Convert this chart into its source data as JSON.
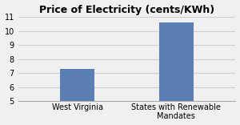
{
  "title": "Price of Electricity (cents/KWh)",
  "categories": [
    "West Virginia",
    "States with Renewable\nMandates"
  ],
  "values": [
    7.3,
    10.6
  ],
  "bar_color": "#5b7fb5",
  "ylim": [
    5,
    11
  ],
  "yticks": [
    5,
    6,
    7,
    8,
    9,
    10,
    11
  ],
  "title_fontsize": 9,
  "tick_fontsize": 7,
  "background_color": "#f0f0f0",
  "grid_color": "#d0d0d0",
  "bar_width": 0.35
}
